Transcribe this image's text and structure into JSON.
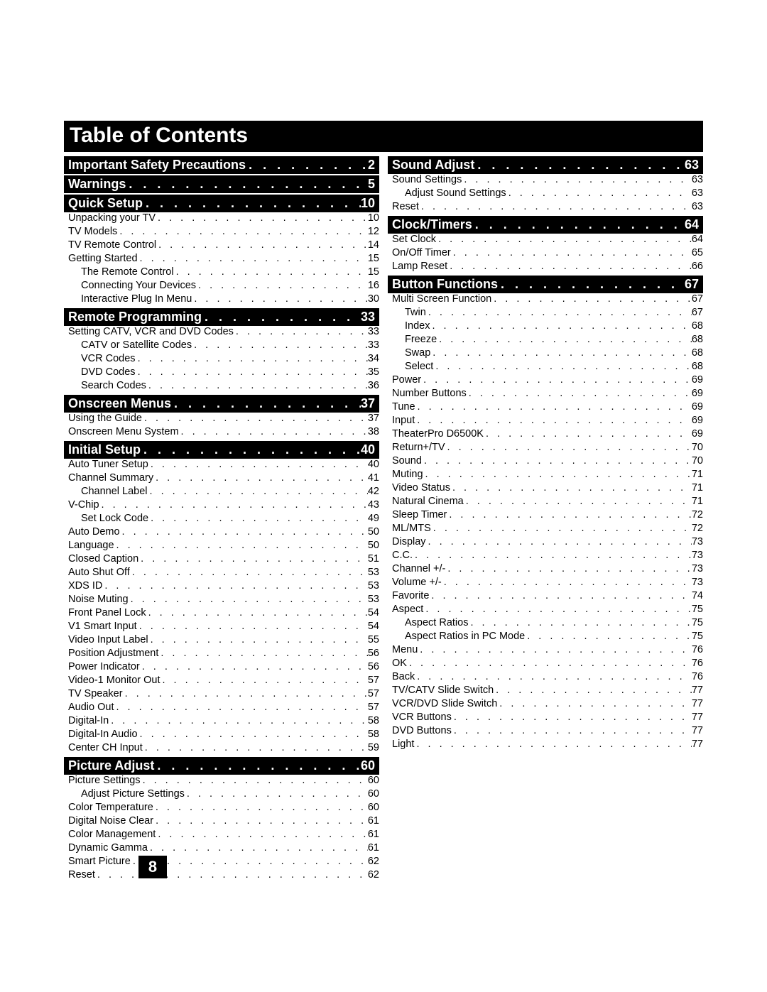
{
  "title": "Table of Contents",
  "page_number": "8",
  "colors": {
    "bg": "#ffffff",
    "bar_bg": "#000000",
    "bar_fg": "#ffffff",
    "text": "#000000"
  },
  "typography": {
    "title_fontsize": 30,
    "section_fontsize": 18,
    "entry_fontsize": 14.5
  },
  "columns": [
    {
      "sections": [
        {
          "title": "Important Safety Precautions",
          "page": "2",
          "entries": []
        },
        {
          "title": "Warnings",
          "page": "5",
          "entries": []
        },
        {
          "title": "Quick Setup",
          "page": "10",
          "entries": [
            {
              "title": "Unpacking your TV",
              "page": "10",
              "indent": 0
            },
            {
              "title": "TV Models",
              "page": "12",
              "indent": 0
            },
            {
              "title": "TV Remote Control",
              "page": "14",
              "indent": 0
            },
            {
              "title": "Getting Started",
              "page": "15",
              "indent": 0
            },
            {
              "title": "The Remote Control",
              "page": "15",
              "indent": 1
            },
            {
              "title": "Connecting Your Devices",
              "page": "16",
              "indent": 1
            },
            {
              "title": "Interactive Plug In Menu",
              "page": "30",
              "indent": 1
            }
          ]
        },
        {
          "title": "Remote Programming",
          "page": "33",
          "entries": [
            {
              "title": "Setting CATV, VCR and DVD Codes",
              "page": "33",
              "indent": 0
            },
            {
              "title": "CATV or Satellite Codes",
              "page": "33",
              "indent": 1
            },
            {
              "title": "VCR Codes",
              "page": "34",
              "indent": 1
            },
            {
              "title": "DVD Codes",
              "page": "35",
              "indent": 1
            },
            {
              "title": "Search Codes",
              "page": "36",
              "indent": 1
            }
          ]
        },
        {
          "title": "Onscreen Menus",
          "page": "37",
          "entries": [
            {
              "title": "Using the Guide",
              "page": "37",
              "indent": 0
            },
            {
              "title": "Onscreen Menu System",
              "page": "38",
              "indent": 0
            }
          ]
        },
        {
          "title": "Initial Setup",
          "page": "40",
          "entries": [
            {
              "title": "Auto Tuner Setup",
              "page": "40",
              "indent": 0
            },
            {
              "title": "Channel Summary",
              "page": "41",
              "indent": 0
            },
            {
              "title": "Channel Label",
              "page": "42",
              "indent": 1
            },
            {
              "title": "V-Chip",
              "page": "43",
              "indent": 0
            },
            {
              "title": "Set Lock Code",
              "page": "49",
              "indent": 1
            },
            {
              "title": "Auto Demo",
              "page": "50",
              "indent": 0
            },
            {
              "title": "Language",
              "page": "50",
              "indent": 0
            },
            {
              "title": "Closed Caption",
              "page": "51",
              "indent": 0
            },
            {
              "title": "Auto Shut Off",
              "page": "53",
              "indent": 0
            },
            {
              "title": "XDS ID",
              "page": "53",
              "indent": 0
            },
            {
              "title": "Noise Muting",
              "page": "53",
              "indent": 0
            },
            {
              "title": "Front Panel Lock",
              "page": "54",
              "indent": 0
            },
            {
              "title": "V1 Smart Input",
              "page": "54",
              "indent": 0
            },
            {
              "title": "Video Input Label",
              "page": "55",
              "indent": 0
            },
            {
              "title": "Position Adjustment",
              "page": "56",
              "indent": 0
            },
            {
              "title": "Power Indicator",
              "page": "56",
              "indent": 0
            },
            {
              "title": "Video-1 Monitor Out",
              "page": "57",
              "indent": 0
            },
            {
              "title": "TV Speaker",
              "page": "57",
              "indent": 0
            },
            {
              "title": "Audio Out",
              "page": "57",
              "indent": 0
            },
            {
              "title": "Digital-In",
              "page": "58",
              "indent": 0
            },
            {
              "title": "Digital-In Audio",
              "page": "58",
              "indent": 0
            },
            {
              "title": "Center CH Input",
              "page": "59",
              "indent": 0
            }
          ]
        },
        {
          "title": "Picture Adjust",
          "page": "60",
          "entries": [
            {
              "title": "Picture Settings",
              "page": "60",
              "indent": 0
            },
            {
              "title": "Adjust Picture Settings",
              "page": "60",
              "indent": 1
            },
            {
              "title": "Color Temperature",
              "page": "60",
              "indent": 0
            },
            {
              "title": "Digital Noise Clear",
              "page": "61",
              "indent": 0
            },
            {
              "title": "Color Management",
              "page": "61",
              "indent": 0
            },
            {
              "title": "Dynamic Gamma",
              "page": "61",
              "indent": 0
            },
            {
              "title": "Smart Picture",
              "page": "62",
              "indent": 0
            },
            {
              "title": "Reset",
              "page": "62",
              "indent": 0
            }
          ]
        }
      ]
    },
    {
      "sections": [
        {
          "title": "Sound Adjust",
          "page": "63",
          "entries": [
            {
              "title": "Sound Settings",
              "page": "63",
              "indent": 0
            },
            {
              "title": "Adjust Sound Settings",
              "page": "63",
              "indent": 1
            },
            {
              "title": "Reset",
              "page": "63",
              "indent": 0
            }
          ]
        },
        {
          "title": "Clock/Timers",
          "page": "64",
          "entries": [
            {
              "title": "Set Clock",
              "page": "64",
              "indent": 0
            },
            {
              "title": "On/Off Timer",
              "page": "65",
              "indent": 0
            },
            {
              "title": "Lamp Reset",
              "page": "66",
              "indent": 0
            }
          ]
        },
        {
          "title": "Button Functions",
          "page": "67",
          "entries": [
            {
              "title": "Multi Screen Function",
              "page": "67",
              "indent": 0
            },
            {
              "title": "Twin",
              "page": "67",
              "indent": 1
            },
            {
              "title": "Index",
              "page": "68",
              "indent": 1
            },
            {
              "title": "Freeze",
              "page": "68",
              "indent": 1
            },
            {
              "title": "Swap",
              "page": "68",
              "indent": 1
            },
            {
              "title": "Select",
              "page": "68",
              "indent": 1
            },
            {
              "title": "Power",
              "page": "69",
              "indent": 0
            },
            {
              "title": "Number Buttons",
              "page": "69",
              "indent": 0
            },
            {
              "title": "Tune",
              "page": "69",
              "indent": 0
            },
            {
              "title": "Input",
              "page": "69",
              "indent": 0
            },
            {
              "title": "TheaterPro D6500K",
              "page": "69",
              "indent": 0
            },
            {
              "title": "Return+/TV",
              "page": "70",
              "indent": 0
            },
            {
              "title": "Sound",
              "page": "70",
              "indent": 0
            },
            {
              "title": "Muting",
              "page": "71",
              "indent": 0
            },
            {
              "title": "Video Status",
              "page": "71",
              "indent": 0
            },
            {
              "title": "Natural Cinema",
              "page": "71",
              "indent": 0
            },
            {
              "title": "Sleep Timer",
              "page": "72",
              "indent": 0
            },
            {
              "title": "ML/MTS",
              "page": "72",
              "indent": 0
            },
            {
              "title": "Display",
              "page": "73",
              "indent": 0
            },
            {
              "title": "C.C.",
              "page": "73",
              "indent": 0
            },
            {
              "title": "Channel +/-",
              "page": "73",
              "indent": 0
            },
            {
              "title": "Volume +/-",
              "page": "73",
              "indent": 0
            },
            {
              "title": "Favorite",
              "page": "74",
              "indent": 0
            },
            {
              "title": "Aspect",
              "page": "75",
              "indent": 0
            },
            {
              "title": "Aspect Ratios",
              "page": "75",
              "indent": 1
            },
            {
              "title": "Aspect Ratios in PC Mode",
              "page": "75",
              "indent": 1
            },
            {
              "title": "Menu",
              "page": "76",
              "indent": 0
            },
            {
              "title": "OK",
              "page": "76",
              "indent": 0
            },
            {
              "title": "Back",
              "page": "76",
              "indent": 0
            },
            {
              "title": "TV/CATV Slide Switch",
              "page": "77",
              "indent": 0
            },
            {
              "title": "VCR/DVD Slide Switch",
              "page": "77",
              "indent": 0
            },
            {
              "title": "VCR Buttons",
              "page": "77",
              "indent": 0
            },
            {
              "title": "DVD Buttons",
              "page": "77",
              "indent": 0
            },
            {
              "title": "Light",
              "page": "77",
              "indent": 0
            }
          ]
        }
      ]
    }
  ]
}
